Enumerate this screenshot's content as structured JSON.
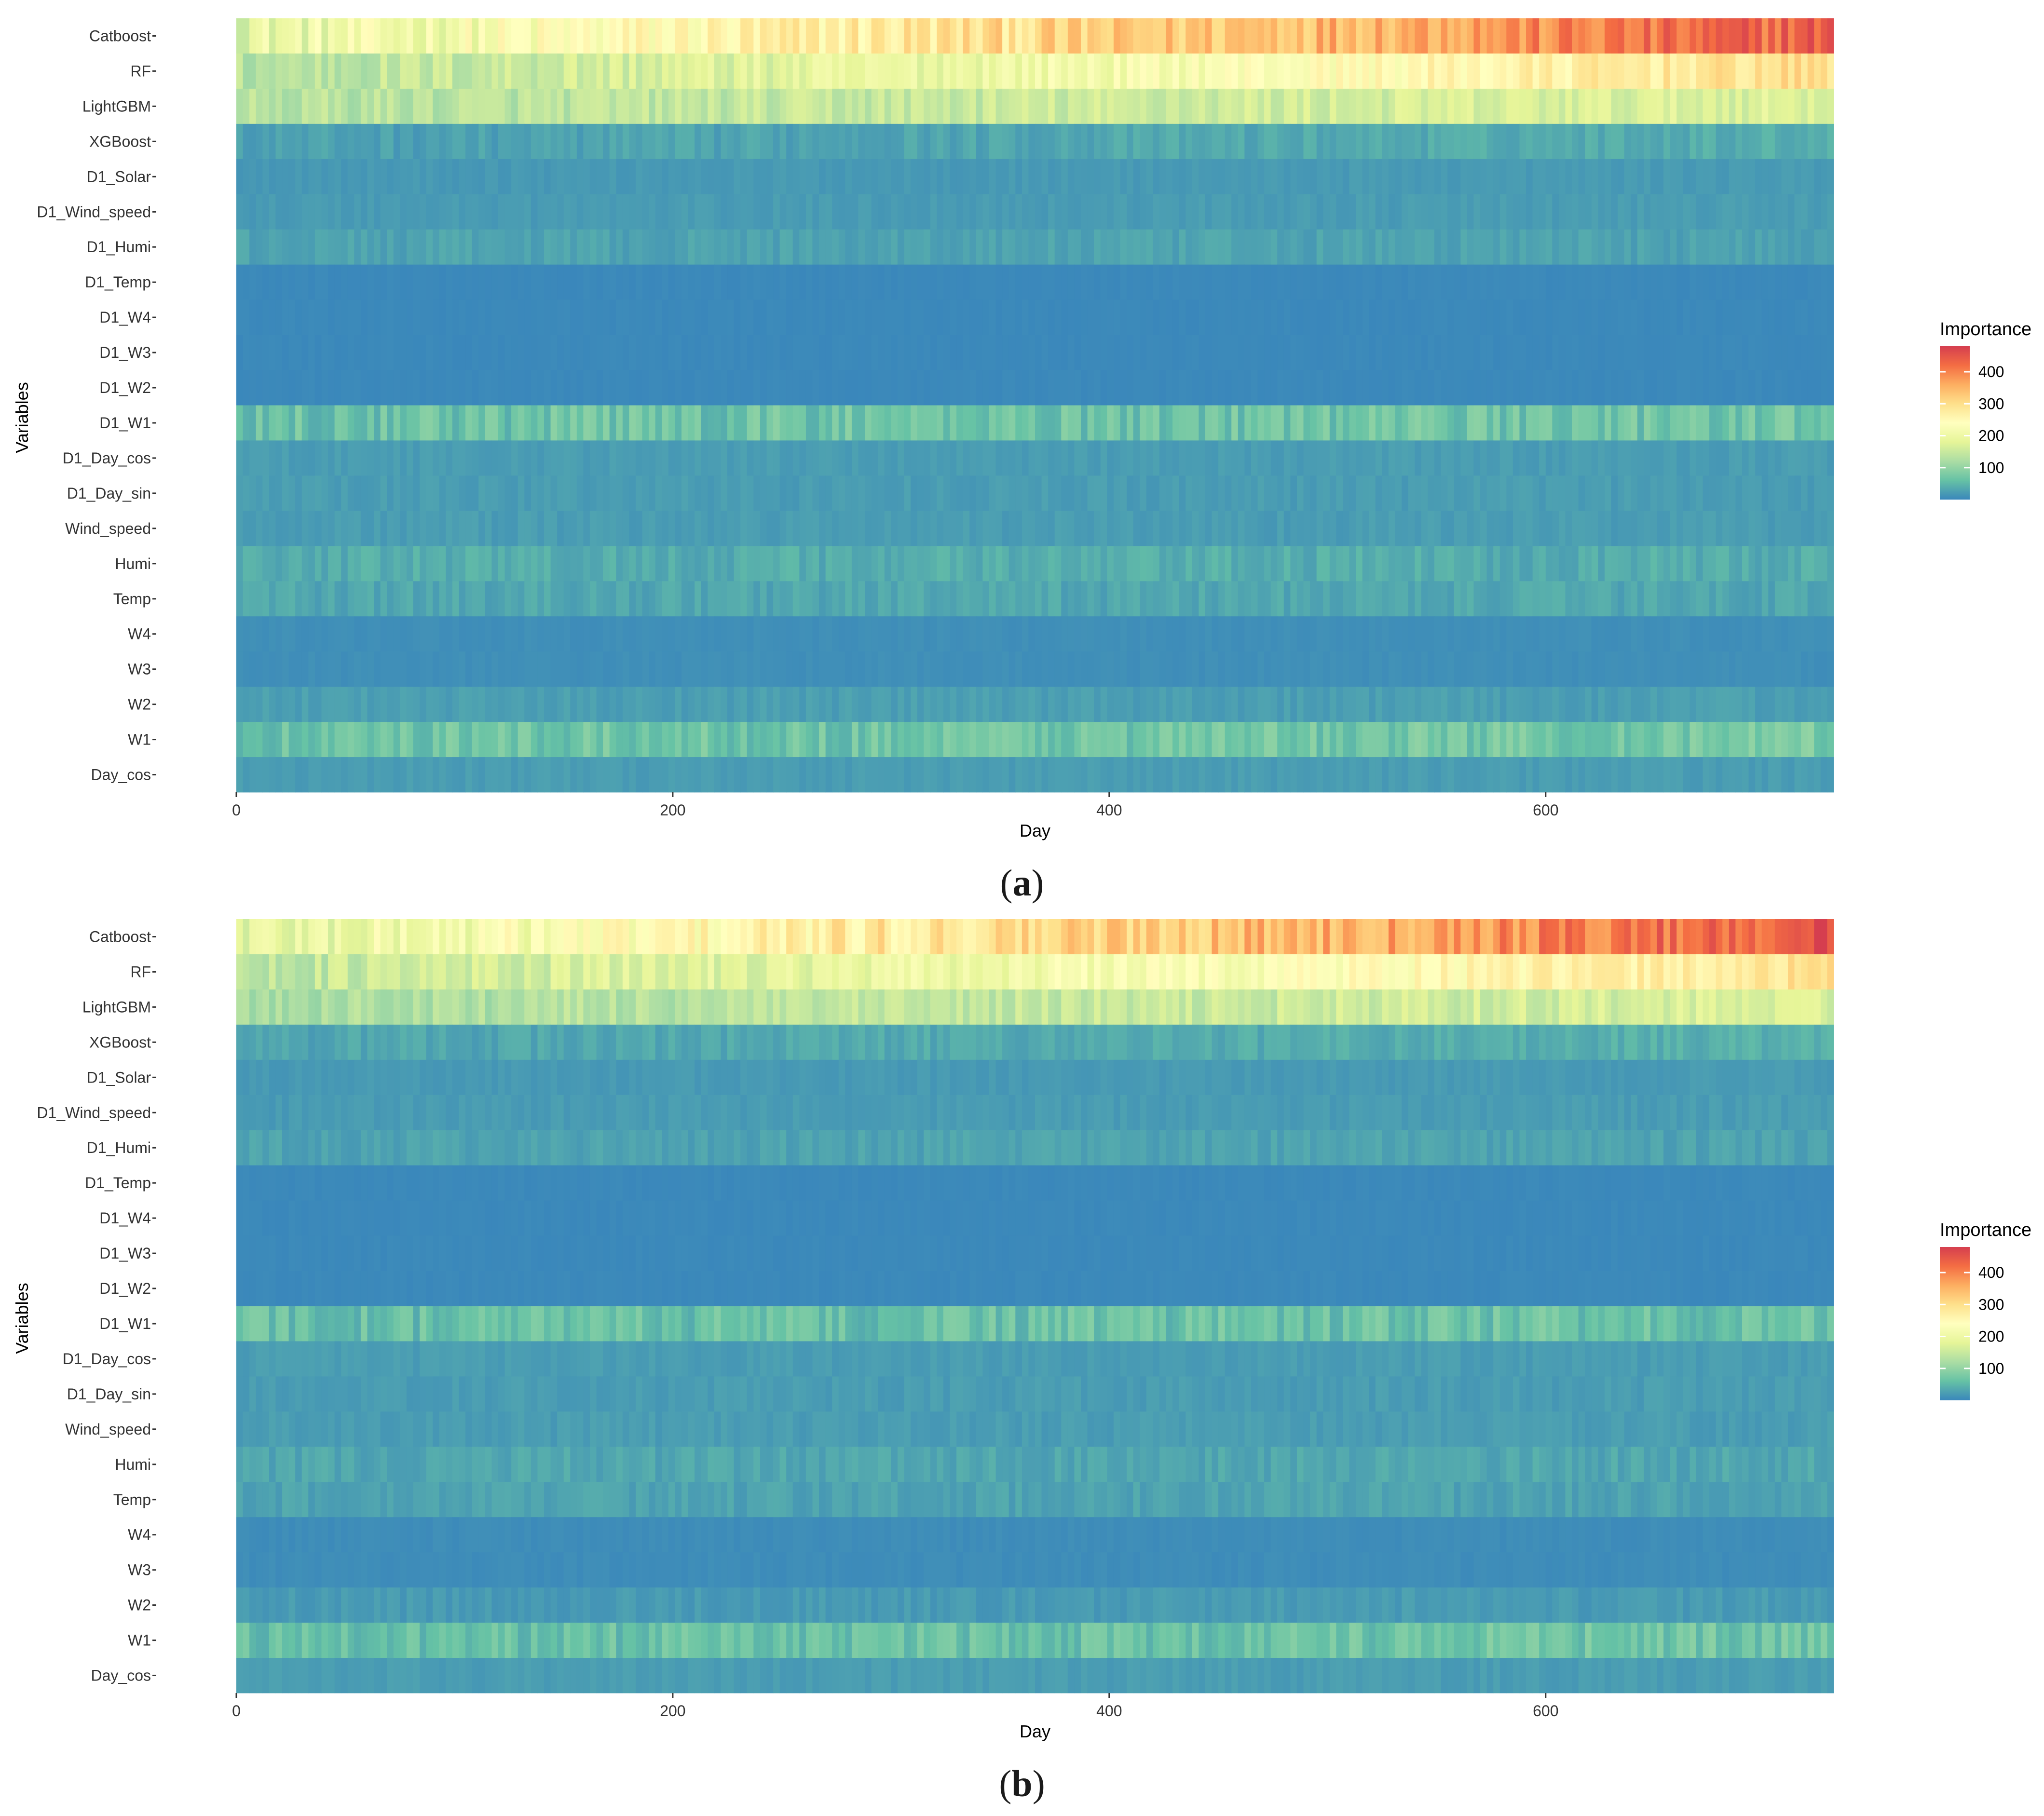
{
  "chart_data": [
    {
      "type": "heatmap",
      "panel": "a",
      "caption_open": "(",
      "caption_letter": "a",
      "caption_close": ")",
      "xlabel": "Day",
      "ylabel": "Variables",
      "xlim": [
        0,
        732
      ],
      "xticks": [
        0,
        200,
        400,
        600
      ],
      "xtick_labels": [
        "0",
        "200",
        "400",
        "600"
      ],
      "variables": [
        "Catboost",
        "RF",
        "LightGBM",
        "XGBoost",
        "D1_Solar",
        "D1_Wind_speed",
        "D1_Humi",
        "D1_Temp",
        "D1_W4",
        "D1_W3",
        "D1_W2",
        "D1_W1",
        "D1_Day_cos",
        "D1_Day_sin",
        "Wind_speed",
        "Humi",
        "Temp",
        "W4",
        "W3",
        "W2",
        "W1",
        "Day_cos"
      ],
      "approx_importance": {
        "Catboost": {
          "start": 190,
          "end": 440,
          "noise": 45
        },
        "RF": {
          "start": 130,
          "end": 300,
          "noise": 30
        },
        "LightGBM": {
          "start": 130,
          "end": 175,
          "noise": 25
        },
        "XGBoost": {
          "start": 25,
          "end": 40,
          "noise": 12
        },
        "D1_Solar": {
          "start": 18,
          "end": 20,
          "noise": 5
        },
        "D1_Wind_speed": {
          "start": 20,
          "end": 22,
          "noise": 6
        },
        "D1_Humi": {
          "start": 28,
          "end": 28,
          "noise": 10
        },
        "D1_Temp": {
          "start": 2,
          "end": 2,
          "noise": 2
        },
        "D1_W4": {
          "start": 2,
          "end": 2,
          "noise": 2
        },
        "D1_W3": {
          "start": 2,
          "end": 2,
          "noise": 2
        },
        "D1_W2": {
          "start": 2,
          "end": 2,
          "noise": 2
        },
        "D1_W1": {
          "start": 65,
          "end": 70,
          "noise": 28
        },
        "D1_Day_cos": {
          "start": 22,
          "end": 22,
          "noise": 6
        },
        "D1_Day_sin": {
          "start": 22,
          "end": 22,
          "noise": 7
        },
        "Wind_speed": {
          "start": 22,
          "end": 22,
          "noise": 7
        },
        "Humi": {
          "start": 38,
          "end": 38,
          "noise": 14
        },
        "Temp": {
          "start": 32,
          "end": 32,
          "noise": 12
        },
        "W4": {
          "start": 8,
          "end": 8,
          "noise": 3
        },
        "W3": {
          "start": 8,
          "end": 8,
          "noise": 3
        },
        "W2": {
          "start": 24,
          "end": 24,
          "noise": 8
        },
        "W1": {
          "start": 65,
          "end": 75,
          "noise": 25
        },
        "Day_cos": {
          "start": 22,
          "end": 22,
          "noise": 6
        }
      },
      "legend": {
        "title": "Importance",
        "ticks": [
          400,
          300,
          200,
          100
        ],
        "tick_labels": [
          "400",
          "300",
          "200",
          "100"
        ],
        "range": [
          0,
          480
        ],
        "placement": "right"
      },
      "color_scale": [
        "#3a87bb",
        "#66c2a5",
        "#abdda4",
        "#e6f598",
        "#ffffbf",
        "#fee08b",
        "#fdae61",
        "#f46d43",
        "#d53e4f"
      ]
    },
    {
      "type": "heatmap",
      "panel": "b",
      "caption_open": "(",
      "caption_letter": "b",
      "caption_close": ")",
      "xlabel": "Day",
      "ylabel": "Variables",
      "xlim": [
        0,
        732
      ],
      "xticks": [
        0,
        200,
        400,
        600
      ],
      "xtick_labels": [
        "0",
        "200",
        "400",
        "600"
      ],
      "variables": [
        "Catboost",
        "RF",
        "LightGBM",
        "XGBoost",
        "D1_Solar",
        "D1_Wind_speed",
        "D1_Humi",
        "D1_Temp",
        "D1_W4",
        "D1_W3",
        "D1_W2",
        "D1_W1",
        "D1_Day_cos",
        "D1_Day_sin",
        "Wind_speed",
        "Humi",
        "Temp",
        "W4",
        "W3",
        "W2",
        "W1",
        "Day_cos"
      ],
      "approx_importance": {
        "Catboost": {
          "start": 185,
          "end": 450,
          "noise": 45
        },
        "RF": {
          "start": 140,
          "end": 290,
          "noise": 30
        },
        "LightGBM": {
          "start": 120,
          "end": 170,
          "noise": 25
        },
        "XGBoost": {
          "start": 30,
          "end": 42,
          "noise": 12
        },
        "D1_Solar": {
          "start": 18,
          "end": 20,
          "noise": 5
        },
        "D1_Wind_speed": {
          "start": 20,
          "end": 22,
          "noise": 6
        },
        "D1_Humi": {
          "start": 28,
          "end": 28,
          "noise": 10
        },
        "D1_Temp": {
          "start": 2,
          "end": 2,
          "noise": 2
        },
        "D1_W4": {
          "start": 2,
          "end": 2,
          "noise": 2
        },
        "D1_W3": {
          "start": 2,
          "end": 2,
          "noise": 2
        },
        "D1_W2": {
          "start": 2,
          "end": 2,
          "noise": 2
        },
        "D1_W1": {
          "start": 60,
          "end": 65,
          "noise": 26
        },
        "D1_Day_cos": {
          "start": 22,
          "end": 22,
          "noise": 6
        },
        "D1_Day_sin": {
          "start": 22,
          "end": 22,
          "noise": 7
        },
        "Wind_speed": {
          "start": 22,
          "end": 22,
          "noise": 7
        },
        "Humi": {
          "start": 32,
          "end": 32,
          "noise": 12
        },
        "Temp": {
          "start": 28,
          "end": 28,
          "noise": 10
        },
        "W4": {
          "start": 6,
          "end": 6,
          "noise": 3
        },
        "W3": {
          "start": 6,
          "end": 6,
          "noise": 3
        },
        "W2": {
          "start": 20,
          "end": 20,
          "noise": 8
        },
        "W1": {
          "start": 60,
          "end": 70,
          "noise": 24
        },
        "Day_cos": {
          "start": 22,
          "end": 22,
          "noise": 6
        }
      },
      "legend": {
        "title": "Importance",
        "ticks": [
          400,
          300,
          200,
          100
        ],
        "tick_labels": [
          "400",
          "300",
          "200",
          "100"
        ],
        "range": [
          0,
          480
        ],
        "placement": "right"
      },
      "color_scale": [
        "#3a87bb",
        "#66c2a5",
        "#abdda4",
        "#e6f598",
        "#ffffbf",
        "#fee08b",
        "#fdae61",
        "#f46d43",
        "#d53e4f"
      ]
    }
  ]
}
